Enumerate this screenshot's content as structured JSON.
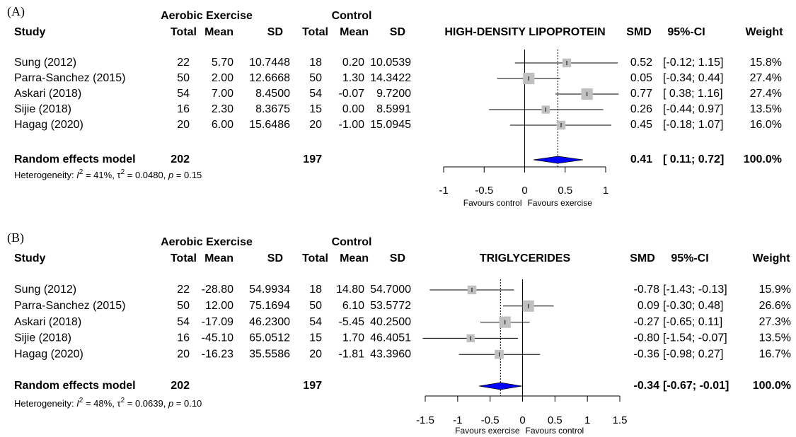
{
  "chart_data": [
    {
      "type": "forest",
      "panel_label": "(A)",
      "group_headers": [
        "Aerobic Exercise",
        "Control"
      ],
      "column_headers": [
        "Study",
        "Total",
        "Mean",
        "SD",
        "Total",
        "Mean",
        "SD"
      ],
      "plot_title": "HIGH-DENSITY LIPOPROTEIN",
      "stat_headers": [
        "SMD",
        "95%-CI",
        "Weight"
      ],
      "studies": [
        [
          "Sung (2012)",
          "22",
          "5.70",
          "10.7448",
          "18",
          "0.20",
          "10.0539"
        ],
        [
          "Parra-Sanchez (2015)",
          "50",
          "2.00",
          "12.6668",
          "50",
          "1.30",
          "14.3422"
        ],
        [
          "Askari (2018)",
          "54",
          "7.00",
          "8.4500",
          "54",
          "-0.07",
          "9.7200"
        ],
        [
          "Sijie (2018)",
          "16",
          "2.30",
          "8.3675",
          "15",
          "0.00",
          "8.5991"
        ],
        [
          "Hagag (2020)",
          "20",
          "6.00",
          "15.6486",
          "20",
          "-1.00",
          "15.0945"
        ]
      ],
      "smd": [
        0.52,
        0.05,
        0.77,
        0.26,
        0.45
      ],
      "smd_labels": [
        "0.52",
        "0.05",
        "0.77",
        "0.26",
        "0.45"
      ],
      "ci_low": [
        -0.12,
        -0.34,
        0.38,
        -0.44,
        -0.18
      ],
      "ci_high": [
        1.15,
        0.44,
        1.16,
        0.97,
        1.07
      ],
      "ci_labels": [
        "[-0.12; 1.15]",
        "[-0.34; 0.44]",
        "[ 0.38; 1.16]",
        "[-0.44; 0.97]",
        "[-0.18; 1.07]"
      ],
      "weights": [
        15.8,
        27.4,
        27.4,
        13.5,
        16.0
      ],
      "weight_labels": [
        "15.8%",
        "27.4%",
        "27.4%",
        "13.5%",
        "16.0%"
      ],
      "model": {
        "label": "Random effects model",
        "total_e": "202",
        "total_c": "197",
        "smd": 0.41,
        "smd_label": "0.41",
        "ci_low": 0.11,
        "ci_high": 0.72,
        "ci_label": "[ 0.11; 0.72]",
        "weight_label": "100.0%"
      },
      "heterogeneity": [
        "Heterogeneity: ",
        "I",
        "2",
        " = 41%, ",
        "τ",
        "2",
        " = 0.0480, ",
        "p",
        " = 0.15"
      ],
      "xlim": [
        -1,
        1
      ],
      "xticks": [
        -1,
        -0.5,
        0,
        0.5,
        1
      ],
      "xlabels": [
        "Favours control",
        "Favours exercise"
      ],
      "square_color": "#c0c0c0",
      "diamond_color": "#0000ff"
    },
    {
      "type": "forest",
      "panel_label": "(B)",
      "group_headers": [
        "Aerobic Exercise",
        "Control"
      ],
      "column_headers": [
        "Study",
        "Total",
        "Mean",
        "SD",
        "Total",
        "Mean",
        "SD"
      ],
      "plot_title": "TRIGLYCERIDES",
      "stat_headers": [
        "SMD",
        "95%-CI",
        "Weight"
      ],
      "studies": [
        [
          "Sung (2012)",
          "22",
          "-28.80",
          "54.9934",
          "18",
          "14.80",
          "54.7000"
        ],
        [
          "Parra-Sanchez (2015)",
          "50",
          "12.00",
          "75.1694",
          "50",
          "6.10",
          "53.5772"
        ],
        [
          "Askari (2018)",
          "54",
          "-17.09",
          "46.2300",
          "54",
          "-5.45",
          "40.2500"
        ],
        [
          "Sijie (2018)",
          "16",
          "-45.10",
          "65.0512",
          "15",
          "1.70",
          "46.4051"
        ],
        [
          "Hagag (2020)",
          "20",
          "-16.23",
          "35.5586",
          "20",
          "-1.81",
          "43.3960"
        ]
      ],
      "smd": [
        -0.78,
        0.09,
        -0.27,
        -0.8,
        -0.36
      ],
      "smd_labels": [
        "-0.78",
        "0.09",
        "-0.27",
        "-0.80",
        "-0.36"
      ],
      "ci_low": [
        -1.43,
        -0.3,
        -0.65,
        -1.54,
        -0.98
      ],
      "ci_high": [
        -0.13,
        0.48,
        0.11,
        -0.07,
        0.27
      ],
      "ci_labels": [
        "[-1.43; -0.13]",
        "[-0.30; 0.48]",
        "[-0.65; 0.11]",
        "[-1.54; -0.07]",
        "[-0.98; 0.27]"
      ],
      "weights": [
        15.9,
        26.6,
        27.3,
        13.5,
        16.7
      ],
      "weight_labels": [
        "15.9%",
        "26.6%",
        "27.3%",
        "13.5%",
        "16.7%"
      ],
      "model": {
        "label": "Random effects model",
        "total_e": "202",
        "total_c": "197",
        "smd": -0.34,
        "smd_label": "-0.34",
        "ci_low": -0.67,
        "ci_high": -0.01,
        "ci_label": "[-0.67; -0.01]",
        "weight_label": "100.0%"
      },
      "heterogeneity": [
        "Heterogeneity: ",
        "I",
        "2",
        " = 48%, ",
        "τ",
        "2",
        " = 0.0639, ",
        "p",
        " = 0.10"
      ],
      "xlim": [
        -1.5,
        1.5
      ],
      "xticks": [
        -1.5,
        -1,
        -0.5,
        0,
        0.5,
        1,
        1.5
      ],
      "xlabels": [
        "Favours exercise",
        "Favours control"
      ],
      "square_color": "#c0c0c0",
      "diamond_color": "#0000ff"
    }
  ]
}
